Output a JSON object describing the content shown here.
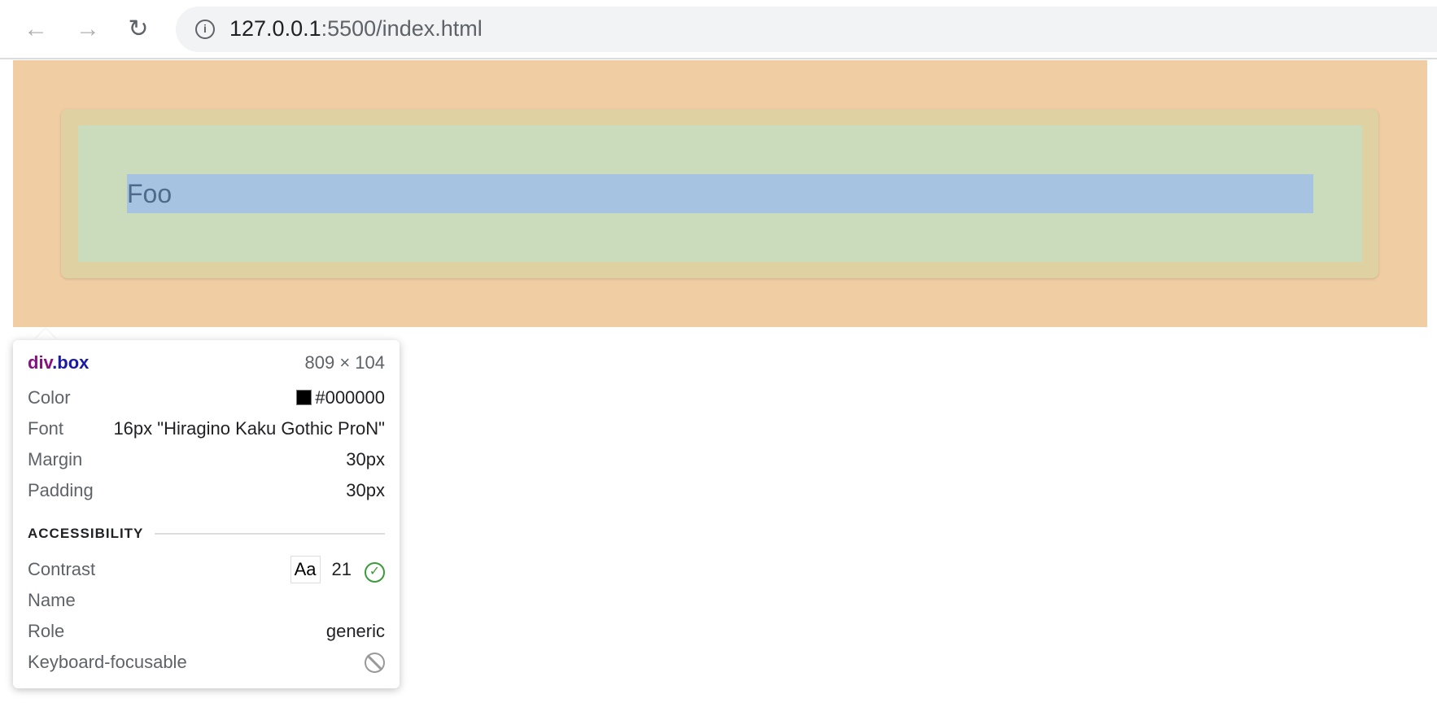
{
  "browser": {
    "url_host": "127.0.0.1",
    "url_rest": ":5500/index.html",
    "back_icon": "arrow-left",
    "forward_icon": "arrow-right",
    "reload_icon": "reload",
    "info_icon": "info-circle"
  },
  "page": {
    "text": "Foo"
  },
  "colors": {
    "margin": "#f0cda3",
    "border": "#dfd1a2",
    "padding": "#cadcbc",
    "content": "#a6c3e2",
    "check": "#3b9b3b"
  },
  "tooltip": {
    "tag": "div",
    "class": ".box",
    "size": "809 × 104",
    "rows": [
      {
        "label": "Color",
        "value": "#000000"
      },
      {
        "label": "Font",
        "value": "16px \"Hiragino Kaku Gothic ProN\""
      },
      {
        "label": "Margin",
        "value": "30px"
      },
      {
        "label": "Padding",
        "value": "30px"
      }
    ],
    "accessibility": {
      "heading": "ACCESSIBILITY",
      "contrast_label": "Contrast",
      "contrast_sample": "Aa",
      "contrast_value": "21",
      "name_label": "Name",
      "role_label": "Role",
      "role_value": "generic",
      "keyboard_label": "Keyboard-focusable"
    }
  }
}
